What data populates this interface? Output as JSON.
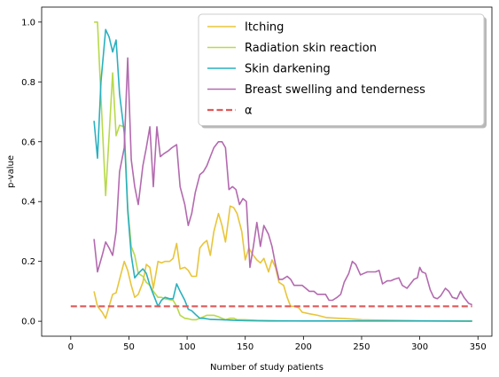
{
  "chart_data": {
    "type": "line",
    "title": "",
    "xlabel": "Number of study patients",
    "ylabel": "p-value",
    "xlim": [
      -25,
      362
    ],
    "ylim": [
      -0.05,
      1.05
    ],
    "xticks": [
      0,
      50,
      100,
      150,
      200,
      250,
      300,
      350
    ],
    "yticks": [
      0.0,
      0.2,
      0.4,
      0.6,
      0.8,
      1.0
    ],
    "xtick_labels": [
      "0",
      "50",
      "100",
      "150",
      "200",
      "250",
      "300",
      "350"
    ],
    "ytick_labels": [
      "0.0",
      "0.2",
      "0.4",
      "0.6",
      "0.8",
      "1.0"
    ],
    "grid": false,
    "legend_position": "top-right",
    "series": [
      {
        "name": "Itching",
        "color": "#e8c53a",
        "style": "solid",
        "points": [
          [
            20,
            0.1
          ],
          [
            23,
            0.05
          ],
          [
            27,
            0.03
          ],
          [
            30,
            0.01
          ],
          [
            33,
            0.05
          ],
          [
            36,
            0.09
          ],
          [
            39,
            0.095
          ],
          [
            42,
            0.14
          ],
          [
            46,
            0.2
          ],
          [
            49,
            0.17
          ],
          [
            52,
            0.12
          ],
          [
            55,
            0.08
          ],
          [
            58,
            0.09
          ],
          [
            62,
            0.13
          ],
          [
            65,
            0.19
          ],
          [
            68,
            0.18
          ],
          [
            71,
            0.11
          ],
          [
            75,
            0.2
          ],
          [
            78,
            0.195
          ],
          [
            81,
            0.2
          ],
          [
            85,
            0.2
          ],
          [
            88,
            0.21
          ],
          [
            91,
            0.26
          ],
          [
            94,
            0.175
          ],
          [
            98,
            0.18
          ],
          [
            101,
            0.17
          ],
          [
            104,
            0.15
          ],
          [
            108,
            0.15
          ],
          [
            111,
            0.245
          ],
          [
            114,
            0.26
          ],
          [
            117,
            0.27
          ],
          [
            120,
            0.22
          ],
          [
            123,
            0.3
          ],
          [
            127,
            0.36
          ],
          [
            130,
            0.32
          ],
          [
            133,
            0.265
          ],
          [
            137,
            0.385
          ],
          [
            140,
            0.38
          ],
          [
            143,
            0.36
          ],
          [
            147,
            0.3
          ],
          [
            150,
            0.205
          ],
          [
            153,
            0.245
          ],
          [
            156,
            0.225
          ],
          [
            160,
            0.205
          ],
          [
            163,
            0.195
          ],
          [
            166,
            0.21
          ],
          [
            170,
            0.165
          ],
          [
            173,
            0.205
          ],
          [
            176,
            0.18
          ],
          [
            179,
            0.13
          ],
          [
            183,
            0.12
          ],
          [
            186,
            0.08
          ],
          [
            189,
            0.05
          ],
          [
            192,
            0.05
          ],
          [
            196,
            0.045
          ],
          [
            199,
            0.03
          ],
          [
            205,
            0.025
          ],
          [
            212,
            0.02
          ],
          [
            220,
            0.012
          ],
          [
            230,
            0.01
          ],
          [
            240,
            0.008
          ],
          [
            250,
            0.005
          ],
          [
            265,
            0.004
          ],
          [
            280,
            0.003
          ],
          [
            300,
            0.002
          ],
          [
            320,
            0.001
          ],
          [
            345,
            0.001
          ]
        ]
      },
      {
        "name": "Radiation skin reaction",
        "color": "#b8d94a",
        "style": "solid",
        "points": [
          [
            20,
            1.0
          ],
          [
            23,
            1.0
          ],
          [
            26,
            0.75
          ],
          [
            30,
            0.42
          ],
          [
            33,
            0.62
          ],
          [
            36,
            0.83
          ],
          [
            39,
            0.62
          ],
          [
            42,
            0.655
          ],
          [
            46,
            0.65
          ],
          [
            49,
            0.38
          ],
          [
            52,
            0.25
          ],
          [
            55,
            0.22
          ],
          [
            58,
            0.16
          ],
          [
            62,
            0.15
          ],
          [
            65,
            0.13
          ],
          [
            68,
            0.12
          ],
          [
            71,
            0.1
          ],
          [
            75,
            0.08
          ],
          [
            78,
            0.08
          ],
          [
            81,
            0.075
          ],
          [
            85,
            0.072
          ],
          [
            88,
            0.07
          ],
          [
            91,
            0.05
          ],
          [
            94,
            0.02
          ],
          [
            98,
            0.01
          ],
          [
            101,
            0.008
          ],
          [
            104,
            0.005
          ],
          [
            108,
            0.005
          ],
          [
            111,
            0.01
          ],
          [
            114,
            0.015
          ],
          [
            117,
            0.02
          ],
          [
            120,
            0.02
          ],
          [
            123,
            0.02
          ],
          [
            127,
            0.015
          ],
          [
            130,
            0.01
          ],
          [
            133,
            0.005
          ],
          [
            137,
            0.01
          ],
          [
            140,
            0.01
          ],
          [
            143,
            0.005
          ],
          [
            150,
            0.005
          ],
          [
            160,
            0.003
          ],
          [
            180,
            0.002
          ],
          [
            200,
            0.001
          ],
          [
            250,
            0.001
          ],
          [
            300,
            0.001
          ],
          [
            345,
            0.001
          ]
        ]
      },
      {
        "name": "Skin darkening",
        "color": "#2ab0bf",
        "style": "solid",
        "points": [
          [
            20,
            0.67
          ],
          [
            23,
            0.545
          ],
          [
            26,
            0.8
          ],
          [
            30,
            0.975
          ],
          [
            33,
            0.95
          ],
          [
            36,
            0.9
          ],
          [
            39,
            0.94
          ],
          [
            42,
            0.76
          ],
          [
            46,
            0.63
          ],
          [
            49,
            0.37
          ],
          [
            52,
            0.22
          ],
          [
            55,
            0.145
          ],
          [
            58,
            0.16
          ],
          [
            62,
            0.175
          ],
          [
            65,
            0.16
          ],
          [
            68,
            0.12
          ],
          [
            71,
            0.09
          ],
          [
            75,
            0.05
          ],
          [
            78,
            0.07
          ],
          [
            81,
            0.08
          ],
          [
            85,
            0.075
          ],
          [
            88,
            0.075
          ],
          [
            91,
            0.125
          ],
          [
            94,
            0.1
          ],
          [
            98,
            0.07
          ],
          [
            101,
            0.04
          ],
          [
            104,
            0.035
          ],
          [
            108,
            0.02
          ],
          [
            111,
            0.01
          ],
          [
            114,
            0.01
          ],
          [
            117,
            0.008
          ],
          [
            120,
            0.006
          ],
          [
            130,
            0.005
          ],
          [
            140,
            0.003
          ],
          [
            150,
            0.002
          ],
          [
            170,
            0.001
          ],
          [
            200,
            0.001
          ],
          [
            250,
            0.001
          ],
          [
            300,
            0.001
          ],
          [
            345,
            0.0
          ]
        ]
      },
      {
        "name": "Breast swelling and tenderness",
        "color": "#b36aaf",
        "style": "solid",
        "points": [
          [
            20,
            0.275
          ],
          [
            23,
            0.165
          ],
          [
            27,
            0.22
          ],
          [
            30,
            0.265
          ],
          [
            33,
            0.245
          ],
          [
            36,
            0.22
          ],
          [
            39,
            0.3
          ],
          [
            42,
            0.5
          ],
          [
            46,
            0.58
          ],
          [
            49,
            0.88
          ],
          [
            52,
            0.54
          ],
          [
            55,
            0.45
          ],
          [
            58,
            0.39
          ],
          [
            62,
            0.52
          ],
          [
            65,
            0.58
          ],
          [
            68,
            0.65
          ],
          [
            71,
            0.45
          ],
          [
            74,
            0.65
          ],
          [
            77,
            0.55
          ],
          [
            80,
            0.56
          ],
          [
            84,
            0.57
          ],
          [
            87,
            0.58
          ],
          [
            91,
            0.59
          ],
          [
            94,
            0.45
          ],
          [
            98,
            0.39
          ],
          [
            101,
            0.32
          ],
          [
            104,
            0.36
          ],
          [
            107,
            0.43
          ],
          [
            111,
            0.49
          ],
          [
            114,
            0.5
          ],
          [
            117,
            0.52
          ],
          [
            120,
            0.55
          ],
          [
            123,
            0.58
          ],
          [
            127,
            0.6
          ],
          [
            130,
            0.6
          ],
          [
            133,
            0.58
          ],
          [
            136,
            0.44
          ],
          [
            139,
            0.45
          ],
          [
            142,
            0.44
          ],
          [
            145,
            0.39
          ],
          [
            148,
            0.41
          ],
          [
            151,
            0.4
          ],
          [
            154,
            0.18
          ],
          [
            157,
            0.25
          ],
          [
            160,
            0.33
          ],
          [
            163,
            0.25
          ],
          [
            166,
            0.32
          ],
          [
            170,
            0.29
          ],
          [
            173,
            0.25
          ],
          [
            176,
            0.19
          ],
          [
            179,
            0.14
          ],
          [
            182,
            0.14
          ],
          [
            186,
            0.15
          ],
          [
            189,
            0.14
          ],
          [
            192,
            0.12
          ],
          [
            196,
            0.12
          ],
          [
            199,
            0.12
          ],
          [
            202,
            0.11
          ],
          [
            205,
            0.1
          ],
          [
            209,
            0.1
          ],
          [
            212,
            0.09
          ],
          [
            215,
            0.09
          ],
          [
            219,
            0.09
          ],
          [
            222,
            0.07
          ],
          [
            225,
            0.07
          ],
          [
            229,
            0.08
          ],
          [
            232,
            0.09
          ],
          [
            235,
            0.13
          ],
          [
            239,
            0.16
          ],
          [
            242,
            0.2
          ],
          [
            245,
            0.19
          ],
          [
            249,
            0.155
          ],
          [
            252,
            0.16
          ],
          [
            255,
            0.165
          ],
          [
            259,
            0.165
          ],
          [
            262,
            0.165
          ],
          [
            265,
            0.17
          ],
          [
            268,
            0.125
          ],
          [
            272,
            0.135
          ],
          [
            275,
            0.135
          ],
          [
            278,
            0.14
          ],
          [
            282,
            0.145
          ],
          [
            285,
            0.12
          ],
          [
            289,
            0.11
          ],
          [
            292,
            0.125
          ],
          [
            295,
            0.14
          ],
          [
            298,
            0.145
          ],
          [
            300,
            0.18
          ],
          [
            302,
            0.165
          ],
          [
            305,
            0.16
          ],
          [
            309,
            0.105
          ],
          [
            312,
            0.08
          ],
          [
            315,
            0.075
          ],
          [
            318,
            0.085
          ],
          [
            322,
            0.11
          ],
          [
            325,
            0.1
          ],
          [
            328,
            0.08
          ],
          [
            332,
            0.075
          ],
          [
            335,
            0.1
          ],
          [
            338,
            0.08
          ],
          [
            342,
            0.06
          ],
          [
            345,
            0.055
          ]
        ]
      },
      {
        "name": "α",
        "color": "#e05a5a",
        "style": "dashed",
        "points": [
          [
            0,
            0.05
          ],
          [
            345,
            0.05
          ]
        ]
      }
    ]
  }
}
